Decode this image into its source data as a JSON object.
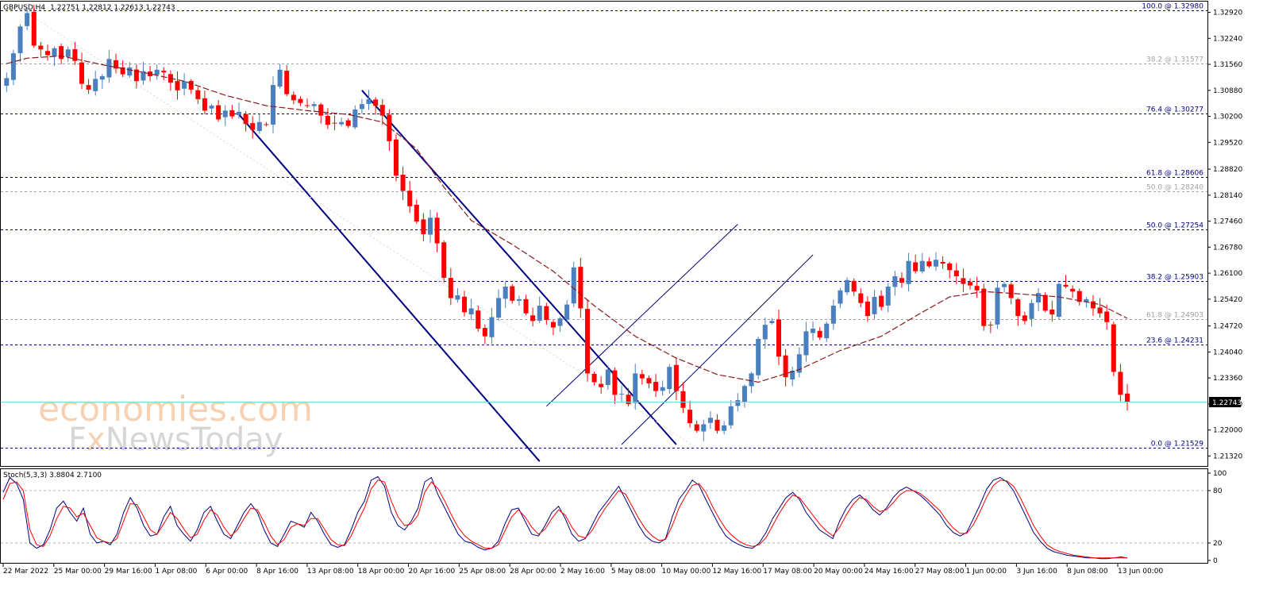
{
  "chart_data": [
    {
      "type": "candlestick",
      "header": {
        "symbol": "GBPUSD,H4",
        "ohlc": "1.22751 1.22812 1.22613 1.22743"
      },
      "ylim": [
        1.2108,
        1.3318
      ],
      "y_ticks": [
        "1.32920",
        "1.32240",
        "1.31560",
        "1.30880",
        "1.30200",
        "1.29520",
        "1.28820",
        "1.28140",
        "1.27460",
        "1.26780",
        "1.26100",
        "1.25420",
        "1.24720",
        "1.24040",
        "1.23360",
        "1.22680",
        "1.22000",
        "1.21320"
      ],
      "current_price": "1.22743",
      "x_ticks": [
        "22 Mar 2022",
        "25 Mar 00:00",
        "29 Mar 16:00",
        "1 Apr 08:00",
        "6 Apr 00:00",
        "8 Apr 16:00",
        "13 Apr 08:00",
        "18 Apr 00:00",
        "20 Apr 16:00",
        "25 Apr 08:00",
        "28 Apr 00:00",
        "2 May 16:00",
        "5 May 08:00",
        "10 May 00:00",
        "12 May 16:00",
        "17 May 08:00",
        "20 May 00:00",
        "24 May 16:00",
        "27 May 08:00",
        "1 Jun 00:00",
        "3 Jun 16:00",
        "8 Jun 08:00",
        "13 Jun 00:00"
      ],
      "fib_levels": [
        {
          "label": "100.0 @ 1.32980",
          "value": 1.3298,
          "color": "#000080"
        },
        {
          "label": "38.2 @ 1.31577",
          "value": 1.31577,
          "color": "#a0a0a0"
        },
        {
          "label": "76.4 @ 1.30277",
          "value": 1.30277,
          "color": "#000080"
        },
        {
          "label": "61.8 @ 1.28606",
          "value": 1.28606,
          "color": "#000080"
        },
        {
          "label": "50.0 @ 1.28240",
          "value": 1.2824,
          "color": "#a0a0a0"
        },
        {
          "label": "50.0 @ 1.27254",
          "value": 1.27254,
          "color": "#000080"
        },
        {
          "label": "38.2 @ 1.25903",
          "value": 1.25903,
          "color": "#000080"
        },
        {
          "label": "61.8 @ 1.24903",
          "value": 1.24903,
          "color": "#a0a0a0"
        },
        {
          "label": "23.6 @ 1.24231",
          "value": 1.24231,
          "color": "#000080"
        },
        {
          "label": "0.0 @ 1.21529",
          "value": 1.21529,
          "color": "#000080"
        }
      ],
      "price_path": [
        [
          0,
          1.312
        ],
        [
          1,
          1.3185
        ],
        [
          2,
          1.3255
        ],
        [
          3,
          1.329
        ],
        [
          4,
          1.3205
        ],
        [
          5,
          1.3195
        ],
        [
          6,
          1.318
        ],
        [
          7,
          1.3198
        ],
        [
          8,
          1.317
        ],
        [
          9,
          1.3195
        ],
        [
          10,
          1.3165
        ],
        [
          11,
          1.3105
        ],
        [
          12,
          1.309
        ],
        [
          13,
          1.3118
        ],
        [
          14,
          1.3125
        ],
        [
          15,
          1.317
        ],
        [
          16,
          1.3145
        ],
        [
          17,
          1.313
        ],
        [
          18,
          1.3148
        ],
        [
          19,
          1.3112
        ],
        [
          20,
          1.3138
        ],
        [
          21,
          1.3125
        ],
        [
          22,
          1.3142
        ],
        [
          23,
          1.3135
        ],
        [
          24,
          1.3108
        ],
        [
          25,
          1.3088
        ],
        [
          26,
          1.3112
        ],
        [
          27,
          1.309
        ],
        [
          28,
          1.3065
        ],
        [
          29,
          1.3035
        ],
        [
          30,
          1.3048
        ],
        [
          31,
          1.3012
        ],
        [
          32,
          1.3035
        ],
        [
          33,
          1.302
        ],
        [
          34,
          1.3032
        ],
        [
          35,
          1.3
        ],
        [
          36,
          1.2985
        ],
        [
          37,
          1.3005
        ],
        [
          38,
          1.2998
        ],
        [
          39,
          1.3102
        ],
        [
          40,
          1.3142
        ],
        [
          41,
          1.3078
        ],
        [
          42,
          1.3062
        ],
        [
          43,
          1.3055
        ],
        [
          44,
          1.3048
        ],
        [
          45,
          1.3052
        ],
        [
          46,
          1.3022
        ],
        [
          47,
          1.2998
        ],
        [
          48,
          1.3002
        ],
        [
          49,
          1.3005
        ],
        [
          50,
          1.2995
        ],
        [
          51,
          1.3038
        ],
        [
          52,
          1.3052
        ],
        [
          53,
          1.3065
        ],
        [
          54,
          1.3048
        ],
        [
          55,
          1.3022
        ],
        [
          56,
          1.2955
        ],
        [
          57,
          1.2865
        ],
        [
          58,
          1.2825
        ],
        [
          59,
          1.2785
        ],
        [
          60,
          1.2745
        ],
        [
          61,
          1.2712
        ],
        [
          62,
          1.2755
        ],
        [
          63,
          1.2688
        ],
        [
          64,
          1.2598
        ],
        [
          65,
          1.2545
        ],
        [
          66,
          1.2552
        ],
        [
          67,
          1.2508
        ],
        [
          68,
          1.2518
        ],
        [
          69,
          1.2465
        ],
        [
          70,
          1.2445
        ],
        [
          71,
          1.2495
        ],
        [
          72,
          1.2545
        ],
        [
          73,
          1.2575
        ],
        [
          74,
          1.2538
        ],
        [
          75,
          1.2542
        ],
        [
          76,
          1.2505
        ],
        [
          77,
          1.2485
        ],
        [
          78,
          1.2525
        ],
        [
          79,
          1.2488
        ],
        [
          80,
          1.2468
        ],
        [
          81,
          1.2492
        ],
        [
          82,
          1.2528
        ],
        [
          83,
          1.2625
        ],
        [
          84,
          1.2518
        ],
        [
          85,
          1.2348
        ],
        [
          86,
          1.2325
        ],
        [
          87,
          1.2312
        ],
        [
          88,
          1.2358
        ],
        [
          89,
          1.2292
        ],
        [
          90,
          1.2295
        ],
        [
          91,
          1.2268
        ],
        [
          92,
          1.2348
        ],
        [
          93,
          1.2335
        ],
        [
          94,
          1.2322
        ],
        [
          95,
          1.2302
        ],
        [
          96,
          1.2312
        ],
        [
          97,
          1.2365
        ],
        [
          98,
          1.2302
        ],
        [
          99,
          1.2258
        ],
        [
          100,
          1.2218
        ],
        [
          101,
          1.2198
        ],
        [
          102,
          1.2215
        ],
        [
          103,
          1.2232
        ],
        [
          104,
          1.2198
        ],
        [
          105,
          1.2212
        ],
        [
          106,
          1.2262
        ],
        [
          107,
          1.2278
        ],
        [
          108,
          1.2315
        ],
        [
          109,
          1.2348
        ],
        [
          110,
          1.2438
        ],
        [
          111,
          1.2475
        ],
        [
          112,
          1.2485
        ],
        [
          113,
          1.2392
        ],
        [
          114,
          1.2338
        ],
        [
          115,
          1.2355
        ],
        [
          116,
          1.2398
        ],
        [
          117,
          1.2458
        ],
        [
          118,
          1.2465
        ],
        [
          119,
          1.2442
        ],
        [
          120,
          1.2478
        ],
        [
          121,
          1.2525
        ],
        [
          122,
          1.2565
        ],
        [
          123,
          1.2592
        ],
        [
          124,
          1.2562
        ],
        [
          125,
          1.2532
        ],
        [
          126,
          1.2498
        ],
        [
          127,
          1.2548
        ],
        [
          128,
          1.2522
        ],
        [
          129,
          1.2575
        ],
        [
          130,
          1.2602
        ],
        [
          131,
          1.2585
        ],
        [
          132,
          1.2642
        ],
        [
          133,
          1.2615
        ],
        [
          134,
          1.2642
        ],
        [
          135,
          1.2628
        ],
        [
          136,
          1.2645
        ],
        [
          137,
          1.2635
        ],
        [
          138,
          1.2618
        ],
        [
          139,
          1.2602
        ],
        [
          140,
          1.2582
        ],
        [
          141,
          1.2578
        ],
        [
          142,
          1.2565
        ],
        [
          143,
          1.2472
        ],
        [
          144,
          1.2475
        ],
        [
          145,
          1.2572
        ],
        [
          146,
          1.2582
        ],
        [
          147,
          1.2545
        ],
        [
          148,
          1.2498
        ],
        [
          149,
          1.2485
        ],
        [
          150,
          1.2532
        ],
        [
          151,
          1.2558
        ],
        [
          152,
          1.2512
        ],
        [
          153,
          1.2502
        ],
        [
          154,
          1.2582
        ],
        [
          155,
          1.2575
        ],
        [
          156,
          1.2562
        ],
        [
          157,
          1.2535
        ],
        [
          158,
          1.2542
        ],
        [
          159,
          1.2518
        ],
        [
          160,
          1.2505
        ],
        [
          161,
          1.2482
        ],
        [
          162,
          1.2352
        ],
        [
          163,
          1.2292
        ],
        [
          164,
          1.2274
        ]
      ],
      "moving_average": [
        [
          0,
          1.3158
        ],
        [
          3,
          1.3172
        ],
        [
          8,
          1.3178
        ],
        [
          14,
          1.3155
        ],
        [
          20,
          1.3135
        ],
        [
          26,
          1.3112
        ],
        [
          32,
          1.3075
        ],
        [
          38,
          1.3048
        ],
        [
          44,
          1.3035
        ],
        [
          50,
          1.3025
        ],
        [
          55,
          1.3005
        ],
        [
          60,
          1.2935
        ],
        [
          64,
          1.2835
        ],
        [
          68,
          1.2748
        ],
        [
          74,
          1.2685
        ],
        [
          80,
          1.2615
        ],
        [
          86,
          1.2525
        ],
        [
          92,
          1.2445
        ],
        [
          98,
          1.2388
        ],
        [
          104,
          1.2345
        ],
        [
          110,
          1.2325
        ],
        [
          116,
          1.2358
        ],
        [
          122,
          1.2408
        ],
        [
          128,
          1.2445
        ],
        [
          134,
          1.2508
        ],
        [
          138,
          1.2548
        ],
        [
          143,
          1.2562
        ],
        [
          148,
          1.2556
        ],
        [
          154,
          1.2548
        ],
        [
          160,
          1.2528
        ],
        [
          164,
          1.2492
        ]
      ],
      "trend_lines": [
        {
          "from": [
            34,
            1.3025
          ],
          "to": [
            78,
            1.2118
          ],
          "color": "#000080",
          "width": 2
        },
        {
          "from": [
            52,
            1.3088
          ],
          "to": [
            98,
            1.2162
          ],
          "color": "#000080",
          "width": 2
        },
        {
          "from": [
            79,
            1.2262
          ],
          "to": [
            107,
            1.2738
          ],
          "color": "#000080",
          "width": 1
        },
        {
          "from": [
            90,
            1.2162
          ],
          "to": [
            118,
            1.2658
          ],
          "color": "#000080",
          "width": 1
        }
      ]
    },
    {
      "type": "line",
      "title": "Stoch(5,3,3) 3.8804 2.7100",
      "ylim": [
        0,
        100
      ],
      "y_ticks": [
        "100",
        "80",
        "20",
        "0"
      ],
      "series": [
        {
          "name": "main",
          "color": "#000080",
          "values": [
            78,
            95,
            88,
            70,
            20,
            14,
            18,
            35,
            60,
            68,
            55,
            45,
            60,
            30,
            20,
            22,
            18,
            30,
            55,
            72,
            60,
            40,
            28,
            30,
            50,
            62,
            40,
            30,
            22,
            35,
            55,
            62,
            45,
            30,
            25,
            40,
            55,
            65,
            55,
            35,
            20,
            16,
            30,
            45,
            42,
            38,
            55,
            45,
            30,
            18,
            15,
            18,
            35,
            55,
            68,
            92,
            96,
            85,
            55,
            40,
            35,
            45,
            60,
            90,
            95,
            75,
            60,
            45,
            30,
            22,
            20,
            15,
            12,
            14,
            22,
            42,
            58,
            60,
            45,
            30,
            28,
            40,
            55,
            62,
            48,
            30,
            22,
            25,
            40,
            55,
            65,
            75,
            85,
            70,
            55,
            40,
            28,
            22,
            20,
            25,
            50,
            70,
            80,
            92,
            86,
            70,
            55,
            40,
            28,
            22,
            18,
            15,
            14,
            20,
            32,
            48,
            60,
            72,
            78,
            70,
            55,
            45,
            35,
            30,
            25,
            45,
            60,
            70,
            75,
            68,
            58,
            52,
            60,
            72,
            80,
            84,
            80,
            75,
            68,
            60,
            52,
            40,
            32,
            28,
            32,
            48,
            64,
            82,
            92,
            95,
            90,
            80,
            64,
            48,
            32,
            22,
            14,
            10,
            8,
            6,
            5,
            4,
            3,
            3,
            2,
            2,
            3,
            4,
            3
          ]
        },
        {
          "name": "signal",
          "color": "#ff0000",
          "values": [
            70,
            88,
            90,
            80,
            35,
            18,
            16,
            28,
            48,
            62,
            60,
            50,
            54,
            40,
            26,
            22,
            20,
            25,
            45,
            65,
            64,
            50,
            35,
            30,
            42,
            55,
            48,
            36,
            26,
            30,
            46,
            58,
            52,
            38,
            28,
            35,
            48,
            60,
            58,
            44,
            28,
            18,
            24,
            38,
            42,
            40,
            48,
            48,
            36,
            24,
            18,
            17,
            28,
            45,
            60,
            82,
            92,
            90,
            68,
            50,
            40,
            42,
            52,
            78,
            90,
            82,
            68,
            52,
            38,
            28,
            22,
            18,
            14,
            14,
            18,
            34,
            50,
            58,
            50,
            38,
            30,
            36,
            48,
            58,
            52,
            38,
            28,
            26,
            34,
            48,
            60,
            70,
            80,
            76,
            62,
            48,
            36,
            28,
            23,
            24,
            40,
            60,
            74,
            86,
            88,
            78,
            62,
            48,
            36,
            28,
            22,
            18,
            16,
            18,
            26,
            40,
            54,
            66,
            75,
            72,
            62,
            52,
            42,
            34,
            28,
            38,
            52,
            64,
            72,
            70,
            62,
            56,
            58,
            66,
            75,
            80,
            80,
            77,
            71,
            64,
            57,
            46,
            37,
            31,
            31,
            41,
            56,
            73,
            86,
            92,
            91,
            85,
            72,
            56,
            40,
            28,
            18,
            13,
            10,
            8,
            6,
            5,
            4,
            3,
            3,
            3,
            3,
            3,
            3
          ]
        }
      ]
    }
  ],
  "watermark": {
    "line1": "economies.com",
    "line2_a": "F",
    "line2_b": "x",
    "line2_c": "NewsToday"
  }
}
